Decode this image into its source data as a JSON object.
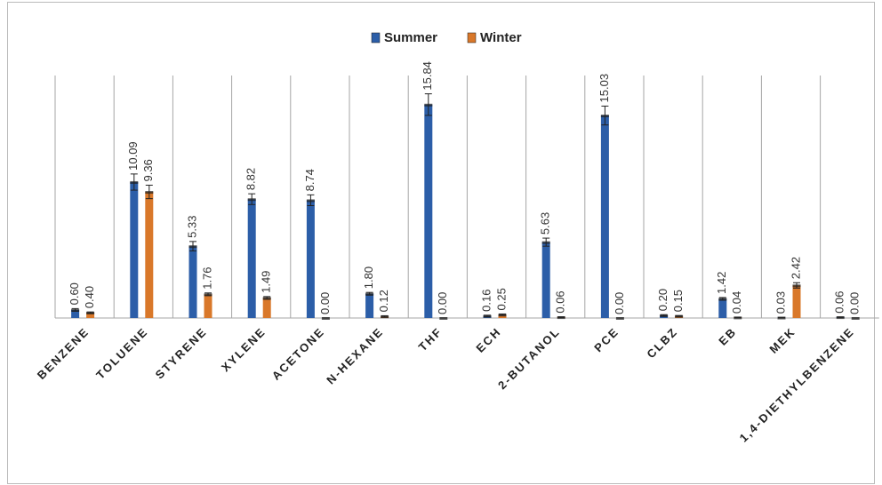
{
  "chart_data": {
    "type": "bar",
    "categories": [
      "BENZENE",
      "TOLUENE",
      "STYRENE",
      "XYLENE",
      "ACETONE",
      "N-HEXANE",
      "THF",
      "ECH",
      "2-BUTANOL",
      "PCE",
      "CLBZ",
      "EB",
      "MEK",
      "1,4-DIETHYLBENZENE"
    ],
    "series": [
      {
        "name": "Summer",
        "color": "#2c5ea8",
        "values": [
          0.6,
          10.09,
          5.33,
          8.82,
          8.74,
          1.8,
          15.84,
          0.16,
          5.63,
          15.03,
          0.2,
          1.42,
          0.03,
          0.06
        ],
        "value_labels": [
          "0.60",
          "10.09",
          "5.33",
          "8.82",
          "8.74",
          "1.80",
          "15.84",
          "0.16",
          "5.63",
          "15.03",
          "0.20",
          "1.42",
          "0.03",
          "0.06"
        ],
        "errors": [
          0.1,
          0.6,
          0.35,
          0.4,
          0.4,
          0.1,
          0.8,
          0.05,
          0.3,
          0.7,
          0.05,
          0.1,
          0.02,
          0.02
        ]
      },
      {
        "name": "Winter",
        "color": "#d9782a",
        "values": [
          0.4,
          9.36,
          1.76,
          1.49,
          0.0,
          0.12,
          0.0,
          0.25,
          0.06,
          0.0,
          0.15,
          0.04,
          2.42,
          0.0
        ],
        "value_labels": [
          "0.40",
          "9.36",
          "1.76",
          "1.49",
          "0.00",
          "0.12",
          "0.00",
          "0.25",
          "0.06",
          "0.00",
          "0.15",
          "0.04",
          "2.42",
          "0.00"
        ],
        "errors": [
          0.05,
          0.5,
          0.1,
          0.1,
          0.0,
          0.05,
          0.0,
          0.05,
          0.03,
          0.0,
          0.03,
          0.02,
          0.2,
          0.0
        ]
      }
    ],
    "ylim": [
      0,
      18
    ],
    "legend": "top"
  }
}
